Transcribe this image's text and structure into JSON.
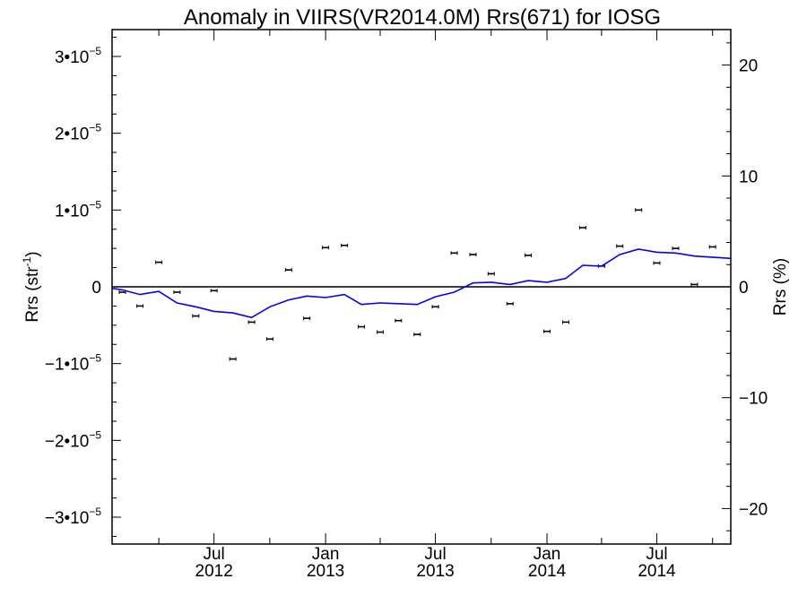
{
  "chart_data": {
    "type": "scatter",
    "title": "Anomaly in VIIRS(VR2014.0M) Rrs(671) for IOSG",
    "ylabel": "Rrs (str",
    "ylabel_sup": "-1",
    "ylabel_close": ")",
    "y2label": "Rrs (%)",
    "ylim": [
      -3.35e-05,
      3.35e-05
    ],
    "y2lim": [
      -23.2,
      23.2
    ],
    "xlim": [
      "2012-01-15",
      "2014-10-31"
    ],
    "grid": false,
    "y_ticks": [
      {
        "value": 3e-05,
        "mant": "3•10",
        "exp": "−5"
      },
      {
        "value": 2e-05,
        "mant": "2•10",
        "exp": "−5"
      },
      {
        "value": 1e-05,
        "mant": "1•10",
        "exp": "−5"
      },
      {
        "value": 0,
        "mant": "0",
        "exp": ""
      },
      {
        "value": -1e-05,
        "mant": "−1•10",
        "exp": "−5"
      },
      {
        "value": -2e-05,
        "mant": "−2•10",
        "exp": "−5"
      },
      {
        "value": -3e-05,
        "mant": "−3•10",
        "exp": "−5"
      }
    ],
    "y2_ticks": [
      {
        "value": 20,
        "label": "20"
      },
      {
        "value": 10,
        "label": "10"
      },
      {
        "value": 0,
        "label": "0"
      },
      {
        "value": -10,
        "label": "−10"
      },
      {
        "value": -20,
        "label": "−20"
      }
    ],
    "x_ticks": [
      {
        "date": "2012-07-01",
        "month": "Jul",
        "year": "2012"
      },
      {
        "date": "2013-01-01",
        "month": "Jan",
        "year": "2013"
      },
      {
        "date": "2013-07-01",
        "month": "Jul",
        "year": "2013"
      },
      {
        "date": "2014-01-01",
        "month": "Jan",
        "year": "2014"
      },
      {
        "date": "2014-07-01",
        "month": "Jul",
        "year": "2014"
      }
    ],
    "x_minor_ticks": [
      "2012-04-01",
      "2012-10-01",
      "2013-04-01",
      "2013-10-01",
      "2014-04-01",
      "2014-10-01"
    ],
    "reference_line": 0,
    "series": [
      {
        "kind": "points_with_error_bars",
        "color": "#000000",
        "points": [
          {
            "x": "2012-02-01",
            "y": -7e-07
          },
          {
            "x": "2012-03-01",
            "y": -2.5e-06
          },
          {
            "x": "2012-04-01",
            "y": 3.2e-06
          },
          {
            "x": "2012-05-01",
            "y": -7e-07
          },
          {
            "x": "2012-06-01",
            "y": -3.8e-06
          },
          {
            "x": "2012-07-01",
            "y": -5e-07
          },
          {
            "x": "2012-08-01",
            "y": -9.4e-06
          },
          {
            "x": "2012-09-01",
            "y": -4.6e-06
          },
          {
            "x": "2012-10-01",
            "y": -6.8e-06
          },
          {
            "x": "2012-11-01",
            "y": 2.2e-06
          },
          {
            "x": "2012-12-01",
            "y": -4.1e-06
          },
          {
            "x": "2013-01-01",
            "y": 5.1e-06
          },
          {
            "x": "2013-02-01",
            "y": 5.4e-06
          },
          {
            "x": "2013-03-01",
            "y": -5.2e-06
          },
          {
            "x": "2013-04-01",
            "y": -5.9e-06
          },
          {
            "x": "2013-05-01",
            "y": -4.4e-06
          },
          {
            "x": "2013-06-01",
            "y": -6.2e-06
          },
          {
            "x": "2013-07-01",
            "y": -2.6e-06
          },
          {
            "x": "2013-08-01",
            "y": 4.4e-06
          },
          {
            "x": "2013-09-01",
            "y": 4.2e-06
          },
          {
            "x": "2013-10-01",
            "y": 1.7e-06
          },
          {
            "x": "2013-11-01",
            "y": -2.2e-06
          },
          {
            "x": "2013-12-01",
            "y": 4.1e-06
          },
          {
            "x": "2014-01-01",
            "y": -5.8e-06
          },
          {
            "x": "2014-02-01",
            "y": -4.6e-06
          },
          {
            "x": "2014-03-01",
            "y": 7.7e-06
          },
          {
            "x": "2014-04-01",
            "y": 2.7e-06
          },
          {
            "x": "2014-05-01",
            "y": 5.3e-06
          },
          {
            "x": "2014-06-01",
            "y": 1e-05
          },
          {
            "x": "2014-07-01",
            "y": 3.1e-06
          },
          {
            "x": "2014-08-01",
            "y": 5e-06
          },
          {
            "x": "2014-09-01",
            "y": 3e-07
          },
          {
            "x": "2014-10-01",
            "y": 5.2e-06
          }
        ]
      },
      {
        "kind": "line",
        "color": "#0000ff",
        "points": [
          {
            "x": "2012-01-15",
            "y": -2e-07
          },
          {
            "x": "2012-02-01",
            "y": -4e-07
          },
          {
            "x": "2012-03-01",
            "y": -1e-06
          },
          {
            "x": "2012-04-01",
            "y": -6e-07
          },
          {
            "x": "2012-05-01",
            "y": -2.1e-06
          },
          {
            "x": "2012-06-01",
            "y": -2.6e-06
          },
          {
            "x": "2012-07-01",
            "y": -3.2e-06
          },
          {
            "x": "2012-08-01",
            "y": -3.4e-06
          },
          {
            "x": "2012-09-01",
            "y": -4e-06
          },
          {
            "x": "2012-10-01",
            "y": -2.6e-06
          },
          {
            "x": "2012-11-01",
            "y": -1.7e-06
          },
          {
            "x": "2012-12-01",
            "y": -1.2e-06
          },
          {
            "x": "2013-01-01",
            "y": -1.4e-06
          },
          {
            "x": "2013-02-01",
            "y": -1e-06
          },
          {
            "x": "2013-03-01",
            "y": -2.3e-06
          },
          {
            "x": "2013-04-01",
            "y": -2.1e-06
          },
          {
            "x": "2013-05-01",
            "y": -2.2e-06
          },
          {
            "x": "2013-06-01",
            "y": -2.3e-06
          },
          {
            "x": "2013-07-01",
            "y": -1.3e-06
          },
          {
            "x": "2013-08-01",
            "y": -7e-07
          },
          {
            "x": "2013-09-01",
            "y": 5e-07
          },
          {
            "x": "2013-10-01",
            "y": 6e-07
          },
          {
            "x": "2013-11-01",
            "y": 3e-07
          },
          {
            "x": "2013-12-01",
            "y": 8e-07
          },
          {
            "x": "2014-01-01",
            "y": 6e-07
          },
          {
            "x": "2014-02-01",
            "y": 1.1e-06
          },
          {
            "x": "2014-03-01",
            "y": 2.8e-06
          },
          {
            "x": "2014-04-01",
            "y": 2.7e-06
          },
          {
            "x": "2014-05-01",
            "y": 4.2e-06
          },
          {
            "x": "2014-06-01",
            "y": 4.9e-06
          },
          {
            "x": "2014-07-01",
            "y": 4.5e-06
          },
          {
            "x": "2014-08-01",
            "y": 4.4e-06
          },
          {
            "x": "2014-09-01",
            "y": 4e-06
          },
          {
            "x": "2014-10-31",
            "y": 3.7e-06
          }
        ]
      }
    ]
  }
}
